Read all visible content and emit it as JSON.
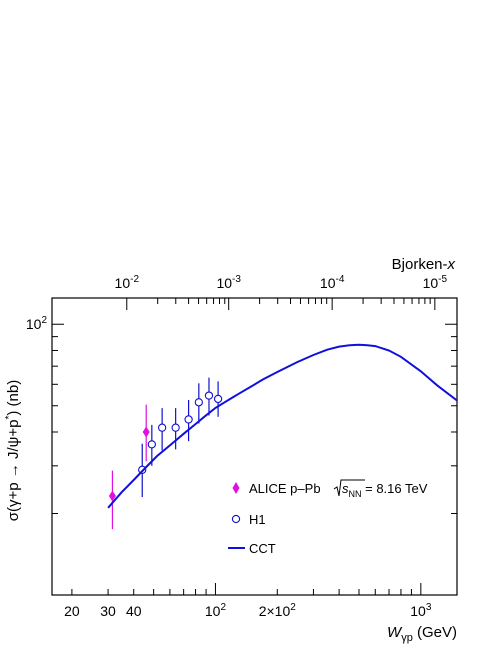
{
  "chart_data": {
    "type": "scatter",
    "x_axis": {
      "label": "W",
      "label_sub": "γp",
      "unit": "(GeV)",
      "scale": "log",
      "range": [
        16,
        1500
      ],
      "tick_labels": [
        {
          "value": 20,
          "label": "20"
        },
        {
          "value": 30,
          "label": "30"
        },
        {
          "value": 40,
          "label": "40"
        },
        {
          "value": 100,
          "label": "10",
          "exp": "2"
        },
        {
          "value": 200,
          "label": "2×10",
          "exp": "2"
        },
        {
          "value": 1000,
          "label": "10",
          "exp": "3"
        }
      ]
    },
    "x2_axis": {
      "label": "Bjorken-",
      "label_var": "x",
      "scale": "log",
      "tick_labels": [
        {
          "value": 0.01,
          "label": "10",
          "exp": "-2",
          "w": 37
        },
        {
          "value": 0.001,
          "label": "10",
          "exp": "-3",
          "w": 116
        },
        {
          "value": 0.0001,
          "label": "10",
          "exp": "-4",
          "w": 370
        },
        {
          "value": 1e-05,
          "label": "10",
          "exp": "-5",
          "w": 1170
        }
      ]
    },
    "y_axis": {
      "label": "σ(γ+p → J/ψ+p",
      "label_sup": "*",
      "label_end": ") (nb)",
      "scale": "log",
      "range": [
        10,
        125
      ],
      "tick_labels": [
        {
          "value": 100,
          "label": "10",
          "exp": "2"
        }
      ]
    },
    "series": [
      {
        "name": "ALICE p–Pb",
        "name_sqrt": "s",
        "name_sub": "NN",
        "name_value": "= 8.16 TeV",
        "marker": "diamond",
        "color": "#e010e0",
        "points": [
          {
            "x": 31.5,
            "y": 23.2,
            "ylo": 17.5,
            "yhi": 28.8
          },
          {
            "x": 46.0,
            "y": 40.0,
            "ylo": 31.2,
            "yhi": 50.5
          }
        ]
      },
      {
        "name": "H1",
        "marker": "open-circle",
        "color": "#1010cc",
        "points": [
          {
            "x": 44.0,
            "y": 29.0,
            "ylo": 23.0,
            "yhi": 36.2
          },
          {
            "x": 49.0,
            "y": 36.0,
            "ylo": 30.0,
            "yhi": 42.5
          },
          {
            "x": 55.0,
            "y": 41.5,
            "ylo": 34.2,
            "yhi": 49.0
          },
          {
            "x": 64.0,
            "y": 41.5,
            "ylo": 34.5,
            "yhi": 49.0
          },
          {
            "x": 74.0,
            "y": 44.5,
            "ylo": 37.0,
            "yhi": 52.5
          },
          {
            "x": 83.0,
            "y": 51.5,
            "ylo": 43.0,
            "yhi": 60.5
          },
          {
            "x": 93.0,
            "y": 54.5,
            "ylo": 46.0,
            "yhi": 63.5
          },
          {
            "x": 103.0,
            "y": 53.0,
            "ylo": 45.5,
            "yhi": 61.5
          }
        ]
      },
      {
        "name": "CCT",
        "marker": "line",
        "color": "#1010dd",
        "x": [
          30,
          35,
          40,
          46,
          52,
          60,
          70,
          80,
          90,
          100,
          110,
          120,
          130,
          150,
          170,
          200,
          250,
          300,
          350,
          400,
          450,
          500,
          550,
          600,
          700,
          800,
          1000,
          1200,
          1500
        ],
        "y": [
          21.0,
          24.0,
          26.6,
          29.7,
          32.6,
          35.7,
          39.4,
          42.8,
          46.1,
          49.1,
          51.3,
          53.4,
          55.4,
          59.0,
          62.5,
          66.6,
          72.5,
          77.0,
          80.5,
          82.7,
          83.7,
          84.0,
          83.7,
          83.0,
          80.0,
          75.8,
          67.0,
          59.5,
          52.3
        ]
      }
    ],
    "legend_position": "bottom-right",
    "grid": false
  }
}
